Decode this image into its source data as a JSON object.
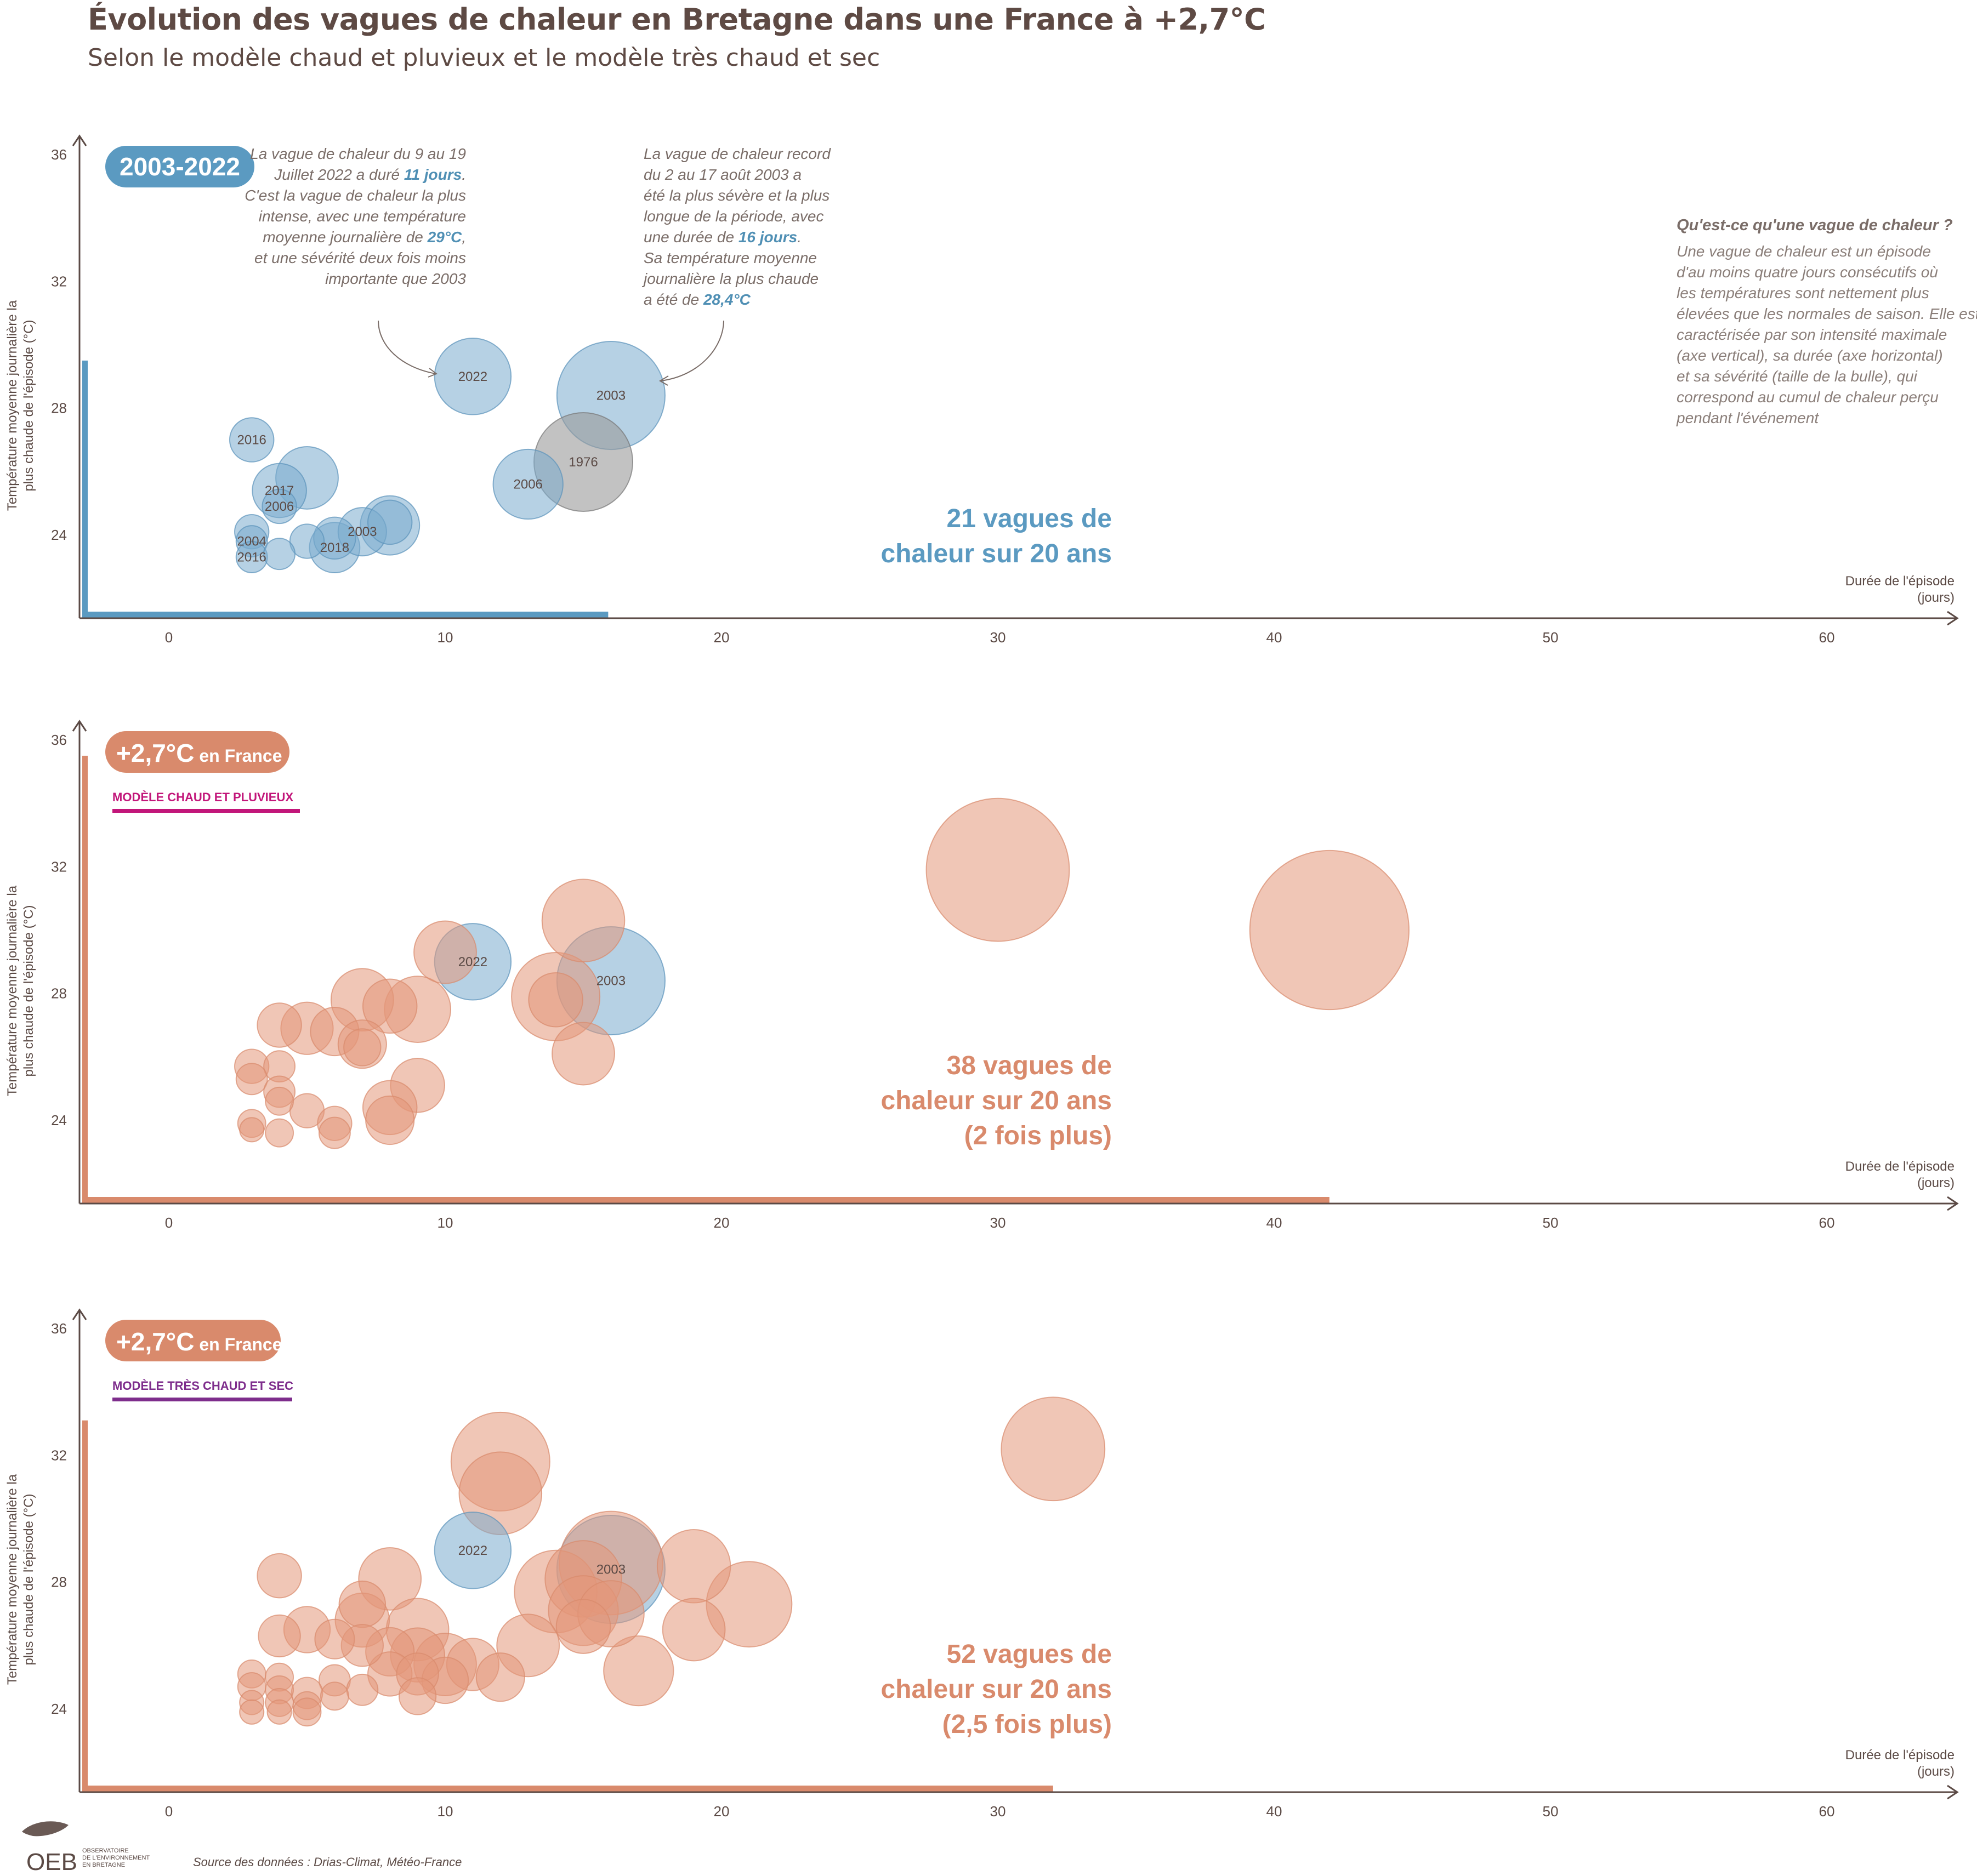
{
  "title": "Évolution des vagues de chaleur en Bretagne dans une France à +2,7°C",
  "subtitle": "Selon le modèle chaud et pluvieux et le modèle très chaud et sec",
  "colors": {
    "blue": "#7aaccd",
    "blue_dark": "#5b9ac1",
    "orange": "#e3987a",
    "orange_dark": "#d98a6c",
    "grey": "#9a9a9a",
    "axis": "#5b4a45",
    "pink": "#c2167a",
    "purple": "#7e2d8c"
  },
  "common_axis": {
    "xlabel_line1": "Durée de l'épisode",
    "xlabel_line2": "(jours)",
    "ylabel_line1": "Température moyenne journalière la",
    "ylabel_line2": "plus chaude de l'épisode (°C)",
    "x_ticks": [
      "0",
      "10",
      "20",
      "30",
      "40",
      "50",
      "60"
    ],
    "y_ticks": [
      "24",
      "28",
      "32",
      "36"
    ]
  },
  "annotations": {
    "a2022": {
      "lines": [
        "La vague de chaleur du 9 au 19",
        "Juillet 2022 a duré |11 jours|.",
        "C'est la vague de chaleur la plus",
        "intense, avec une température",
        "moyenne journalière de |29°C|,",
        "et une sévérité deux fois moins",
        "importante que 2003"
      ]
    },
    "a2003": {
      "lines": [
        "La vague de chaleur record",
        "du 2 au 17 août 2003 a",
        "été la plus sévère et la plus",
        "longue de la période, avec",
        "une durée de |16 jours|.",
        "Sa température moyenne",
        "journalière la plus chaude",
        "a été de |28,4°C|"
      ]
    }
  },
  "definition": {
    "title": "Qu'est-ce qu'une vague de chaleur ?",
    "lines": [
      "Une vague de chaleur est un épisode",
      "d'au moins quatre jours consécutifs où",
      "les températures sont nettement plus",
      "élevées que les normales de saison. Elle est",
      "caractérisée par son intensité maximale",
      "(axe vertical), sa durée (axe horizontal)",
      "et sa sévérité (taille de la bulle), qui",
      "correspond au cumul de chaleur perçu",
      "pendant l'événement"
    ]
  },
  "source": "Source des données : Drias-Climat, Météo-France",
  "logo": {
    "name": "OEB",
    "line1": "OBSERVATOIRE",
    "line2": "DE L'ENVIRONNEMENT",
    "line3": "EN BRETAGNE"
  },
  "chart_data": [
    {
      "type": "scatter",
      "panel": "2003-2022",
      "badge": "2003-2022",
      "model_label": "",
      "count_lines": [
        "21 vagues de",
        "chaleur sur 20 ans"
      ],
      "xlabel": "Durée de l'épisode (jours)",
      "ylabel": "Température moyenne journalière la plus chaude de l'épisode (°C)",
      "xlim": [
        -3,
        65
      ],
      "ylim": [
        21.5,
        37.5
      ],
      "x_max_bar": 15.9,
      "y_max_bar": 29.5,
      "points": [
        {
          "x": 11,
          "y": 29.0,
          "severity": 60,
          "label": "2022",
          "color": "blue"
        },
        {
          "x": 16,
          "y": 28.4,
          "severity": 120,
          "label": "2003",
          "color": "blue"
        },
        {
          "x": 15,
          "y": 26.3,
          "severity": 100,
          "label": "1976",
          "color": "grey"
        },
        {
          "x": 13,
          "y": 25.6,
          "severity": 50,
          "label": "2006",
          "color": "blue"
        },
        {
          "x": 3,
          "y": 27.0,
          "severity": 20,
          "label": "2016",
          "color": "blue"
        },
        {
          "x": 5,
          "y": 25.8,
          "severity": 40,
          "label": "",
          "color": "blue"
        },
        {
          "x": 4,
          "y": 25.4,
          "severity": 30,
          "label": "2017",
          "color": "blue"
        },
        {
          "x": 4,
          "y": 24.9,
          "severity": 12,
          "label": "2006",
          "color": "blue"
        },
        {
          "x": 3,
          "y": 24.1,
          "severity": 12,
          "label": "",
          "color": "blue"
        },
        {
          "x": 3,
          "y": 23.8,
          "severity": 10,
          "label": "2004",
          "color": "blue"
        },
        {
          "x": 3,
          "y": 23.3,
          "severity": 10,
          "label": "2016",
          "color": "blue"
        },
        {
          "x": 4,
          "y": 23.4,
          "severity": 10,
          "label": "",
          "color": "blue"
        },
        {
          "x": 5,
          "y": 23.8,
          "severity": 12,
          "label": "",
          "color": "blue"
        },
        {
          "x": 6,
          "y": 23.6,
          "severity": 26,
          "label": "2018",
          "color": "blue"
        },
        {
          "x": 6,
          "y": 23.9,
          "severity": 18,
          "label": "",
          "color": "blue"
        },
        {
          "x": 7,
          "y": 24.1,
          "severity": 24,
          "label": "2003",
          "color": "blue"
        },
        {
          "x": 8,
          "y": 24.3,
          "severity": 36,
          "label": "",
          "color": "blue"
        },
        {
          "x": 8,
          "y": 24.4,
          "severity": 20,
          "label": "",
          "color": "blue"
        }
      ]
    },
    {
      "type": "scatter",
      "panel": "+2,7°C en France",
      "badge": "+2,7°C",
      "badge_suffix": "en France",
      "model_label": "MODÈLE CHAUD ET PLUVIEUX",
      "model_color": "pink",
      "count_lines": [
        "38 vagues de",
        "chaleur sur 20 ans",
        "(2 fois plus)"
      ],
      "xlabel": "Durée de l'épisode (jours)",
      "ylabel": "Température moyenne journalière la plus chaude de l'épisode (°C)",
      "xlim": [
        -3,
        65
      ],
      "ylim": [
        21.5,
        37.5
      ],
      "x_max_bar": 42,
      "y_max_bar": 35.5,
      "points": [
        {
          "x": 30,
          "y": 31.9,
          "severity": 210,
          "label": "",
          "color": "orange"
        },
        {
          "x": 42,
          "y": 30.0,
          "severity": 260,
          "label": "",
          "color": "orange"
        },
        {
          "x": 15,
          "y": 30.3,
          "severity": 70,
          "label": "",
          "color": "orange"
        },
        {
          "x": 10,
          "y": 29.3,
          "severity": 40,
          "label": "",
          "color": "orange"
        },
        {
          "x": 11,
          "y": 29.0,
          "severity": 60,
          "label": "2022",
          "color": "blue"
        },
        {
          "x": 16,
          "y": 28.4,
          "severity": 120,
          "label": "2003",
          "color": "blue"
        },
        {
          "x": 14,
          "y": 27.9,
          "severity": 80,
          "label": "",
          "color": "orange"
        },
        {
          "x": 14,
          "y": 27.8,
          "severity": 30,
          "label": "",
          "color": "orange"
        },
        {
          "x": 15,
          "y": 26.1,
          "severity": 40,
          "label": "",
          "color": "orange"
        },
        {
          "x": 7,
          "y": 27.8,
          "severity": 40,
          "label": "",
          "color": "orange"
        },
        {
          "x": 8,
          "y": 27.6,
          "severity": 30,
          "label": "",
          "color": "orange"
        },
        {
          "x": 9,
          "y": 27.5,
          "severity": 45,
          "label": "",
          "color": "orange"
        },
        {
          "x": 4,
          "y": 27.0,
          "severity": 20,
          "label": "",
          "color": "orange"
        },
        {
          "x": 5,
          "y": 26.9,
          "severity": 28,
          "label": "",
          "color": "orange"
        },
        {
          "x": 6,
          "y": 26.8,
          "severity": 24,
          "label": "",
          "color": "orange"
        },
        {
          "x": 7,
          "y": 26.4,
          "severity": 24,
          "label": "",
          "color": "orange"
        },
        {
          "x": 7,
          "y": 26.3,
          "severity": 14,
          "label": "",
          "color": "orange"
        },
        {
          "x": 3,
          "y": 25.7,
          "severity": 12,
          "label": "",
          "color": "orange"
        },
        {
          "x": 4,
          "y": 25.7,
          "severity": 10,
          "label": "",
          "color": "orange"
        },
        {
          "x": 3,
          "y": 25.3,
          "severity": 10,
          "label": "",
          "color": "orange"
        },
        {
          "x": 9,
          "y": 25.1,
          "severity": 30,
          "label": "",
          "color": "orange"
        },
        {
          "x": 4,
          "y": 24.9,
          "severity": 10,
          "label": "",
          "color": "orange"
        },
        {
          "x": 4,
          "y": 24.6,
          "severity": 8,
          "label": "",
          "color": "orange"
        },
        {
          "x": 5,
          "y": 24.3,
          "severity": 12,
          "label": "",
          "color": "orange"
        },
        {
          "x": 8,
          "y": 24.4,
          "severity": 30,
          "label": "",
          "color": "orange"
        },
        {
          "x": 8,
          "y": 24.0,
          "severity": 24,
          "label": "",
          "color": "orange"
        },
        {
          "x": 6,
          "y": 23.9,
          "severity": 12,
          "label": "",
          "color": "orange"
        },
        {
          "x": 6,
          "y": 23.6,
          "severity": 10,
          "label": "",
          "color": "orange"
        },
        {
          "x": 3,
          "y": 23.9,
          "severity": 8,
          "label": "",
          "color": "orange"
        },
        {
          "x": 3,
          "y": 23.7,
          "severity": 6,
          "label": "",
          "color": "orange"
        },
        {
          "x": 4,
          "y": 23.6,
          "severity": 8,
          "label": "",
          "color": "orange"
        }
      ]
    },
    {
      "type": "scatter",
      "panel": "+2,7°C en France",
      "badge": "+2,7°C",
      "badge_suffix": "en France",
      "model_label": "MODÈLE TRÈS CHAUD ET SEC",
      "model_color": "purple",
      "count_lines": [
        "52 vagues de",
        "chaleur sur 20 ans",
        "(2,5 fois plus)"
      ],
      "xlabel": "Durée de l'épisode (jours)",
      "ylabel": "Température moyenne journalière la plus chaude de l'épisode (°C)",
      "xlim": [
        -3,
        65
      ],
      "ylim": [
        21.5,
        37.5
      ],
      "x_max_bar": 32,
      "y_max_bar": 33.1,
      "points": [
        {
          "x": 32,
          "y": 32.2,
          "severity": 110,
          "label": "",
          "color": "orange"
        },
        {
          "x": 12,
          "y": 31.8,
          "severity": 100,
          "label": "",
          "color": "orange"
        },
        {
          "x": 12,
          "y": 30.8,
          "severity": 70,
          "label": "",
          "color": "orange"
        },
        {
          "x": 11,
          "y": 29.0,
          "severity": 60,
          "label": "2022",
          "color": "blue"
        },
        {
          "x": 16,
          "y": 28.4,
          "severity": 120,
          "label": "2003",
          "color": "blue"
        },
        {
          "x": 16,
          "y": 28.6,
          "severity": 110,
          "label": "",
          "color": "orange"
        },
        {
          "x": 15,
          "y": 28.1,
          "severity": 60,
          "label": "",
          "color": "orange"
        },
        {
          "x": 14,
          "y": 27.7,
          "severity": 70,
          "label": "",
          "color": "orange"
        },
        {
          "x": 19,
          "y": 28.5,
          "severity": 55,
          "label": "",
          "color": "orange"
        },
        {
          "x": 21,
          "y": 27.3,
          "severity": 75,
          "label": "",
          "color": "orange"
        },
        {
          "x": 15,
          "y": 27.1,
          "severity": 50,
          "label": "",
          "color": "orange"
        },
        {
          "x": 16,
          "y": 27.0,
          "severity": 45,
          "label": "",
          "color": "orange"
        },
        {
          "x": 15,
          "y": 26.6,
          "severity": 30,
          "label": "",
          "color": "orange"
        },
        {
          "x": 19,
          "y": 26.5,
          "severity": 40,
          "label": "",
          "color": "orange"
        },
        {
          "x": 13,
          "y": 26.0,
          "severity": 40,
          "label": "",
          "color": "orange"
        },
        {
          "x": 17,
          "y": 25.2,
          "severity": 50,
          "label": "",
          "color": "orange"
        },
        {
          "x": 8,
          "y": 28.1,
          "severity": 40,
          "label": "",
          "color": "orange"
        },
        {
          "x": 4,
          "y": 28.2,
          "severity": 20,
          "label": "",
          "color": "orange"
        },
        {
          "x": 7,
          "y": 27.3,
          "severity": 22,
          "label": "",
          "color": "orange"
        },
        {
          "x": 7,
          "y": 26.8,
          "severity": 30,
          "label": "",
          "color": "orange"
        },
        {
          "x": 9,
          "y": 26.5,
          "severity": 40,
          "label": "",
          "color": "orange"
        },
        {
          "x": 5,
          "y": 26.5,
          "severity": 22,
          "label": "",
          "color": "orange"
        },
        {
          "x": 4,
          "y": 26.3,
          "severity": 18,
          "label": "",
          "color": "orange"
        },
        {
          "x": 6,
          "y": 26.2,
          "severity": 16,
          "label": "",
          "color": "orange"
        },
        {
          "x": 7,
          "y": 26.0,
          "severity": 18,
          "label": "",
          "color": "orange"
        },
        {
          "x": 8,
          "y": 25.8,
          "severity": 24,
          "label": "",
          "color": "orange"
        },
        {
          "x": 9,
          "y": 25.7,
          "severity": 30,
          "label": "",
          "color": "orange"
        },
        {
          "x": 10,
          "y": 25.4,
          "severity": 40,
          "label": "",
          "color": "orange"
        },
        {
          "x": 11,
          "y": 25.4,
          "severity": 28,
          "label": "",
          "color": "orange"
        },
        {
          "x": 12,
          "y": 25.0,
          "severity": 24,
          "label": "",
          "color": "orange"
        },
        {
          "x": 8,
          "y": 25.1,
          "severity": 20,
          "label": "",
          "color": "orange"
        },
        {
          "x": 9,
          "y": 25.1,
          "severity": 18,
          "label": "",
          "color": "orange"
        },
        {
          "x": 10,
          "y": 24.9,
          "severity": 22,
          "label": "",
          "color": "orange"
        },
        {
          "x": 6,
          "y": 24.9,
          "severity": 10,
          "label": "",
          "color": "orange"
        },
        {
          "x": 7,
          "y": 24.6,
          "severity": 10,
          "label": "",
          "color": "orange"
        },
        {
          "x": 9,
          "y": 24.4,
          "severity": 14,
          "label": "",
          "color": "orange"
        },
        {
          "x": 3,
          "y": 25.1,
          "severity": 8,
          "label": "",
          "color": "orange"
        },
        {
          "x": 4,
          "y": 25.0,
          "severity": 8,
          "label": "",
          "color": "orange"
        },
        {
          "x": 3,
          "y": 24.7,
          "severity": 8,
          "label": "",
          "color": "orange"
        },
        {
          "x": 4,
          "y": 24.6,
          "severity": 8,
          "label": "",
          "color": "orange"
        },
        {
          "x": 5,
          "y": 24.5,
          "severity": 10,
          "label": "",
          "color": "orange"
        },
        {
          "x": 6,
          "y": 24.4,
          "severity": 8,
          "label": "",
          "color": "orange"
        },
        {
          "x": 3,
          "y": 24.2,
          "severity": 6,
          "label": "",
          "color": "orange"
        },
        {
          "x": 4,
          "y": 24.2,
          "severity": 8,
          "label": "",
          "color": "orange"
        },
        {
          "x": 5,
          "y": 24.1,
          "severity": 8,
          "label": "",
          "color": "orange"
        },
        {
          "x": 3,
          "y": 23.9,
          "severity": 6,
          "label": "",
          "color": "orange"
        },
        {
          "x": 4,
          "y": 23.9,
          "severity": 6,
          "label": "",
          "color": "orange"
        },
        {
          "x": 5,
          "y": 23.9,
          "severity": 8,
          "label": "",
          "color": "orange"
        }
      ]
    }
  ]
}
